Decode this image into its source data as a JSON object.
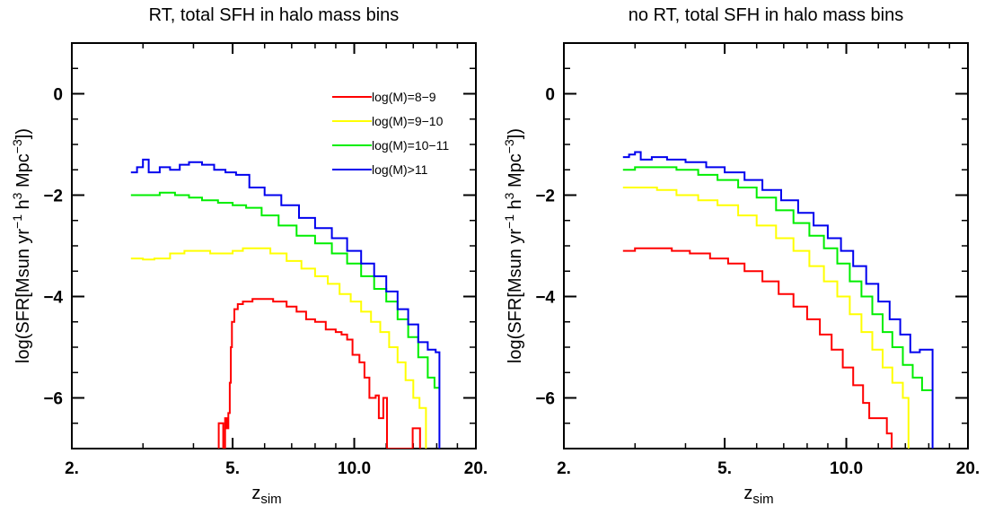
{
  "chart_data": [
    {
      "type": "line",
      "title": "RT, total SFH in halo mass bins",
      "xlabel_main": "z",
      "xlabel_sub": "sim",
      "ylabel": "log(SFR[Msun yr",
      "ylabel_sup1": "−1",
      "ylabel_mid": " h",
      "ylabel_sup2": "3",
      "ylabel_mid2": " Mpc",
      "ylabel_sup3": "−3",
      "ylabel_end": "])",
      "xscale": "log",
      "xlim": [
        2,
        20
      ],
      "ylim": [
        -7,
        1
      ],
      "xticks": [
        {
          "value": 2,
          "label": "2."
        },
        {
          "value": 5,
          "label": "5."
        },
        {
          "value": 10,
          "label": "10.0"
        },
        {
          "value": 20,
          "label": "20."
        }
      ],
      "yticks": [
        {
          "value": 0,
          "label": "0"
        },
        {
          "value": -2,
          "label": "−2"
        },
        {
          "value": -4,
          "label": "−4"
        },
        {
          "value": -6,
          "label": "−6"
        }
      ],
      "legend_position": "top-right",
      "series": [
        {
          "name": "log(M)=8−9",
          "color": "#ff0000",
          "points": [
            [
              4.6,
              -7.0
            ],
            [
              4.62,
              -6.5
            ],
            [
              4.72,
              -6.5
            ],
            [
              4.74,
              -7.0
            ],
            [
              4.77,
              -7.0
            ],
            [
              4.79,
              -6.4
            ],
            [
              4.83,
              -6.4
            ],
            [
              4.84,
              -6.6
            ],
            [
              4.86,
              -6.6
            ],
            [
              4.88,
              -6.3
            ],
            [
              4.9,
              -6.3
            ],
            [
              4.92,
              -5.7
            ],
            [
              4.95,
              -5.0
            ],
            [
              4.98,
              -4.5
            ],
            [
              5.05,
              -4.25
            ],
            [
              5.15,
              -4.15
            ],
            [
              5.3,
              -4.1
            ],
            [
              5.6,
              -4.05
            ],
            [
              6.0,
              -4.05
            ],
            [
              6.3,
              -4.1
            ],
            [
              6.8,
              -4.2
            ],
            [
              7.2,
              -4.3
            ],
            [
              7.6,
              -4.45
            ],
            [
              8.0,
              -4.5
            ],
            [
              8.5,
              -4.65
            ],
            [
              9.0,
              -4.7
            ],
            [
              9.3,
              -4.75
            ],
            [
              9.6,
              -4.85
            ],
            [
              9.9,
              -5.15
            ],
            [
              10.3,
              -5.3
            ],
            [
              10.6,
              -5.6
            ],
            [
              10.9,
              -6.0
            ],
            [
              11.3,
              -5.95
            ],
            [
              11.5,
              -6.4
            ],
            [
              11.8,
              -6.0
            ],
            [
              11.95,
              -6.0
            ],
            [
              12.05,
              -7.0
            ],
            [
              13.9,
              -7.0
            ],
            [
              13.95,
              -6.6
            ],
            [
              14.5,
              -6.6
            ],
            [
              14.55,
              -7.0
            ]
          ]
        },
        {
          "name": "log(M)=9−10",
          "color": "#ffff00",
          "points": [
            [
              2.8,
              -3.25
            ],
            [
              3.0,
              -3.27
            ],
            [
              3.2,
              -3.25
            ],
            [
              3.5,
              -3.15
            ],
            [
              3.8,
              -3.1
            ],
            [
              4.1,
              -3.1
            ],
            [
              4.4,
              -3.15
            ],
            [
              4.7,
              -3.15
            ],
            [
              5.0,
              -3.1
            ],
            [
              5.3,
              -3.05
            ],
            [
              5.7,
              -3.05
            ],
            [
              6.2,
              -3.15
            ],
            [
              6.8,
              -3.3
            ],
            [
              7.4,
              -3.45
            ],
            [
              8.0,
              -3.6
            ],
            [
              8.6,
              -3.75
            ],
            [
              9.2,
              -3.95
            ],
            [
              9.8,
              -4.1
            ],
            [
              10.4,
              -4.3
            ],
            [
              11.0,
              -4.5
            ],
            [
              11.6,
              -4.7
            ],
            [
              12.2,
              -5.0
            ],
            [
              12.8,
              -5.3
            ],
            [
              13.4,
              -5.65
            ],
            [
              14.0,
              -6.0
            ],
            [
              14.5,
              -6.2
            ],
            [
              15.0,
              -6.2
            ],
            [
              15.05,
              -7.0
            ]
          ]
        },
        {
          "name": "log(M)=10−11",
          "color": "#00ee00",
          "points": [
            [
              2.8,
              -2.0
            ],
            [
              3.0,
              -2.0
            ],
            [
              3.3,
              -1.95
            ],
            [
              3.6,
              -2.0
            ],
            [
              3.9,
              -2.05
            ],
            [
              4.2,
              -2.1
            ],
            [
              4.6,
              -2.15
            ],
            [
              5.0,
              -2.2
            ],
            [
              5.4,
              -2.25
            ],
            [
              5.9,
              -2.4
            ],
            [
              6.5,
              -2.6
            ],
            [
              7.2,
              -2.8
            ],
            [
              8.0,
              -2.95
            ],
            [
              8.8,
              -3.15
            ],
            [
              9.6,
              -3.35
            ],
            [
              10.4,
              -3.6
            ],
            [
              11.2,
              -3.85
            ],
            [
              12.0,
              -4.1
            ],
            [
              12.8,
              -4.45
            ],
            [
              13.6,
              -4.8
            ],
            [
              14.4,
              -5.2
            ],
            [
              15.2,
              -5.6
            ],
            [
              15.8,
              -5.8
            ],
            [
              16.3,
              -5.8
            ]
          ]
        },
        {
          "name": "log(M)>11",
          "color": "#0000ee",
          "points": [
            [
              2.8,
              -1.55
            ],
            [
              2.9,
              -1.45
            ],
            [
              3.0,
              -1.3
            ],
            [
              3.1,
              -1.55
            ],
            [
              3.3,
              -1.45
            ],
            [
              3.5,
              -1.5
            ],
            [
              3.7,
              -1.4
            ],
            [
              3.9,
              -1.35
            ],
            [
              4.2,
              -1.4
            ],
            [
              4.5,
              -1.5
            ],
            [
              4.8,
              -1.55
            ],
            [
              5.1,
              -1.6
            ],
            [
              5.5,
              -1.85
            ],
            [
              6.0,
              -2.0
            ],
            [
              6.6,
              -2.2
            ],
            [
              7.3,
              -2.45
            ],
            [
              8.0,
              -2.65
            ],
            [
              8.8,
              -2.85
            ],
            [
              9.6,
              -3.1
            ],
            [
              10.4,
              -3.35
            ],
            [
              11.2,
              -3.6
            ],
            [
              12.0,
              -3.9
            ],
            [
              12.8,
              -4.25
            ],
            [
              13.6,
              -4.55
            ],
            [
              14.4,
              -4.9
            ],
            [
              15.2,
              -5.05
            ],
            [
              15.9,
              -5.1
            ],
            [
              16.2,
              -5.1
            ],
            [
              16.25,
              -7.0
            ]
          ]
        }
      ]
    },
    {
      "type": "line",
      "title": "no RT, total SFH in halo mass bins",
      "xlabel_main": "z",
      "xlabel_sub": "sim",
      "ylabel": "log(SFR[Msun yr",
      "ylabel_sup1": "−1",
      "ylabel_mid": " h",
      "ylabel_sup2": "3",
      "ylabel_mid2": " Mpc",
      "ylabel_sup3": "−3",
      "ylabel_end": "])",
      "xscale": "log",
      "xlim": [
        2,
        20
      ],
      "ylim": [
        -7,
        1
      ],
      "xticks": [
        {
          "value": 2,
          "label": "2."
        },
        {
          "value": 5,
          "label": "5."
        },
        {
          "value": 10,
          "label": "10.0"
        },
        {
          "value": 20,
          "label": "20."
        }
      ],
      "yticks": [
        {
          "value": 0,
          "label": "0"
        },
        {
          "value": -2,
          "label": "−2"
        },
        {
          "value": -4,
          "label": "−4"
        },
        {
          "value": -6,
          "label": "−6"
        }
      ],
      "series": [
        {
          "name": "log(M)=8−9",
          "color": "#ff0000",
          "points": [
            [
              2.8,
              -3.1
            ],
            [
              3.0,
              -3.05
            ],
            [
              3.3,
              -3.05
            ],
            [
              3.7,
              -3.1
            ],
            [
              4.1,
              -3.15
            ],
            [
              4.6,
              -3.25
            ],
            [
              5.1,
              -3.35
            ],
            [
              5.6,
              -3.5
            ],
            [
              6.2,
              -3.7
            ],
            [
              6.8,
              -3.95
            ],
            [
              7.4,
              -4.2
            ],
            [
              8.0,
              -4.45
            ],
            [
              8.6,
              -4.75
            ],
            [
              9.2,
              -5.05
            ],
            [
              9.8,
              -5.4
            ],
            [
              10.4,
              -5.75
            ],
            [
              11.0,
              -6.1
            ],
            [
              11.4,
              -6.4
            ],
            [
              12.0,
              -6.4
            ],
            [
              12.6,
              -6.7
            ],
            [
              12.9,
              -6.7
            ],
            [
              12.95,
              -7.0
            ]
          ]
        },
        {
          "name": "log(M)=9−10",
          "color": "#ffff00",
          "points": [
            [
              2.8,
              -1.85
            ],
            [
              3.0,
              -1.85
            ],
            [
              3.4,
              -1.9
            ],
            [
              3.8,
              -2.0
            ],
            [
              4.3,
              -2.1
            ],
            [
              4.8,
              -2.2
            ],
            [
              5.4,
              -2.4
            ],
            [
              6.0,
              -2.6
            ],
            [
              6.7,
              -2.85
            ],
            [
              7.4,
              -3.1
            ],
            [
              8.1,
              -3.4
            ],
            [
              8.8,
              -3.7
            ],
            [
              9.5,
              -4.0
            ],
            [
              10.2,
              -4.35
            ],
            [
              10.9,
              -4.7
            ],
            [
              11.6,
              -5.05
            ],
            [
              12.3,
              -5.4
            ],
            [
              13.0,
              -5.7
            ],
            [
              13.8,
              -6.0
            ],
            [
              14.2,
              -6.0
            ],
            [
              14.25,
              -7.0
            ]
          ]
        },
        {
          "name": "log(M)=10−11",
          "color": "#00ee00",
          "points": [
            [
              2.8,
              -1.5
            ],
            [
              3.0,
              -1.45
            ],
            [
              3.4,
              -1.45
            ],
            [
              3.8,
              -1.5
            ],
            [
              4.3,
              -1.6
            ],
            [
              4.8,
              -1.7
            ],
            [
              5.4,
              -1.85
            ],
            [
              6.0,
              -2.05
            ],
            [
              6.7,
              -2.3
            ],
            [
              7.4,
              -2.55
            ],
            [
              8.1,
              -2.8
            ],
            [
              8.8,
              -3.05
            ],
            [
              9.5,
              -3.35
            ],
            [
              10.2,
              -3.7
            ],
            [
              10.9,
              -4.0
            ],
            [
              11.6,
              -4.35
            ],
            [
              12.3,
              -4.7
            ],
            [
              13.0,
              -5.0
            ],
            [
              13.8,
              -5.35
            ],
            [
              14.6,
              -5.6
            ],
            [
              15.4,
              -5.85
            ],
            [
              16.3,
              -5.85
            ]
          ]
        },
        {
          "name": "log(M)>11",
          "color": "#0000ee",
          "points": [
            [
              2.8,
              -1.25
            ],
            [
              2.9,
              -1.2
            ],
            [
              3.0,
              -1.15
            ],
            [
              3.1,
              -1.3
            ],
            [
              3.3,
              -1.25
            ],
            [
              3.6,
              -1.3
            ],
            [
              4.0,
              -1.35
            ],
            [
              4.5,
              -1.45
            ],
            [
              5.0,
              -1.55
            ],
            [
              5.6,
              -1.7
            ],
            [
              6.2,
              -1.9
            ],
            [
              6.9,
              -2.1
            ],
            [
              7.6,
              -2.35
            ],
            [
              8.3,
              -2.6
            ],
            [
              9.0,
              -2.85
            ],
            [
              9.7,
              -3.1
            ],
            [
              10.4,
              -3.4
            ],
            [
              11.2,
              -3.75
            ],
            [
              12.0,
              -4.1
            ],
            [
              12.8,
              -4.45
            ],
            [
              13.6,
              -4.75
            ],
            [
              14.4,
              -5.1
            ],
            [
              15.2,
              -5.05
            ],
            [
              16.0,
              -5.05
            ],
            [
              16.3,
              -5.05
            ],
            [
              16.35,
              -7.0
            ]
          ]
        }
      ]
    }
  ]
}
